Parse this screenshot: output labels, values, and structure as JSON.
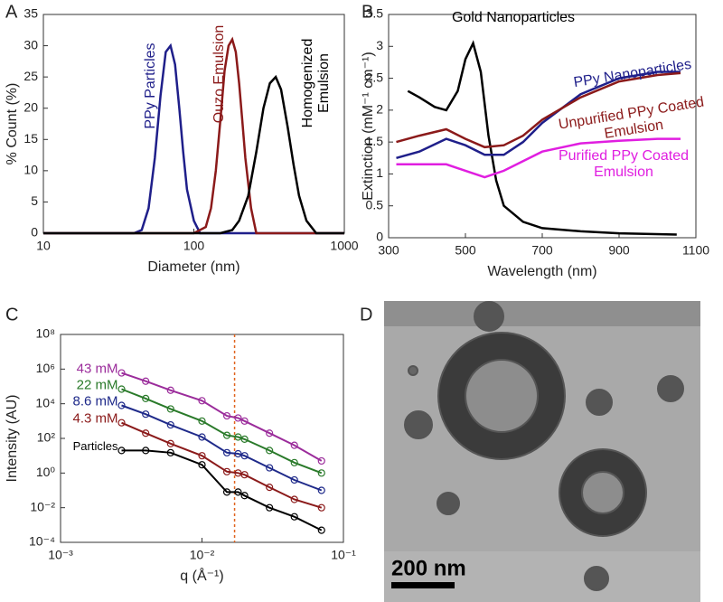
{
  "chart_data": [
    {
      "type": "line",
      "label": "A",
      "xlabel": "Diameter (nm)",
      "ylabel": "% Count (%)",
      "xscale": "log",
      "xlim": [
        10,
        1000
      ],
      "xticks": [
        10,
        100,
        1000
      ],
      "ylim": [
        0,
        35
      ],
      "yticks": [
        0,
        5,
        10,
        15,
        20,
        25,
        30,
        35
      ],
      "series": [
        {
          "name": "PPy Particles",
          "color": "#1f1f8a",
          "x": [
            10,
            40,
            45,
            50,
            55,
            60,
            65,
            70,
            75,
            80,
            85,
            90,
            100,
            110,
            1000
          ],
          "values": [
            0,
            0,
            0.5,
            4,
            12,
            22,
            29,
            30,
            27,
            20,
            13,
            7,
            2,
            0,
            0
          ]
        },
        {
          "name": "Ouzo Emulsion",
          "color": "#8b1a1a",
          "x": [
            10,
            100,
            120,
            130,
            140,
            150,
            160,
            170,
            180,
            190,
            200,
            210,
            220,
            240,
            260,
            1000
          ],
          "values": [
            0,
            0,
            1,
            4,
            10,
            18,
            26,
            30,
            31,
            29,
            24,
            18,
            12,
            4,
            0,
            0
          ]
        },
        {
          "name": "Homogenized Emulsion",
          "color": "#000000",
          "x": [
            10,
            150,
            180,
            200,
            230,
            260,
            290,
            320,
            350,
            380,
            420,
            460,
            500,
            560,
            650,
            1000
          ],
          "values": [
            0,
            0,
            0.5,
            2,
            6,
            13,
            20,
            24,
            25,
            23,
            17,
            11,
            6,
            2,
            0,
            0
          ]
        }
      ]
    },
    {
      "type": "line",
      "label": "B",
      "xlabel": "Wavelength (nm)",
      "ylabel": "Extinction (mM⁻¹ cm⁻¹)",
      "xlim": [
        300,
        1100
      ],
      "xticks": [
        300,
        500,
        700,
        900,
        1100
      ],
      "ylim": [
        0,
        3.5
      ],
      "yticks": [
        0,
        0.5,
        1,
        1.5,
        2,
        2.5,
        3,
        3.5
      ],
      "series": [
        {
          "name": "Gold Nanoparticles",
          "color": "#000000",
          "x": [
            350,
            380,
            420,
            450,
            480,
            500,
            520,
            540,
            560,
            580,
            600,
            650,
            700,
            800,
            900,
            1050
          ],
          "values": [
            2.3,
            2.2,
            2.05,
            2.0,
            2.3,
            2.8,
            3.05,
            2.6,
            1.6,
            0.9,
            0.5,
            0.25,
            0.15,
            0.1,
            0.07,
            0.05
          ]
        },
        {
          "name": "PPy Nanoparticles",
          "color": "#1f1f8a",
          "x": [
            320,
            380,
            450,
            500,
            550,
            600,
            650,
            700,
            800,
            900,
            1000,
            1060
          ],
          "values": [
            1.25,
            1.35,
            1.55,
            1.45,
            1.3,
            1.3,
            1.5,
            1.8,
            2.25,
            2.5,
            2.6,
            2.6
          ]
        },
        {
          "name": "Unpurified PPy Coated Emulsion",
          "color": "#8b1a1a",
          "x": [
            320,
            380,
            450,
            500,
            550,
            600,
            650,
            700,
            800,
            900,
            1000,
            1060
          ],
          "values": [
            1.5,
            1.6,
            1.7,
            1.55,
            1.42,
            1.45,
            1.6,
            1.85,
            2.2,
            2.45,
            2.55,
            2.58
          ]
        },
        {
          "name": "Purified PPy Coated Emulsion",
          "color": "#e01ee0",
          "x": [
            320,
            380,
            450,
            500,
            550,
            600,
            650,
            700,
            800,
            900,
            1000,
            1060
          ],
          "values": [
            1.15,
            1.15,
            1.15,
            1.05,
            0.95,
            1.05,
            1.2,
            1.35,
            1.48,
            1.52,
            1.55,
            1.55
          ]
        }
      ]
    },
    {
      "type": "scatter-line",
      "label": "C",
      "xlabel": "q (Å⁻¹)",
      "ylabel": "Intensity (AU)",
      "xscale": "log",
      "xlim": [
        0.001,
        0.1
      ],
      "xticks": [
        {
          "value": 0.001,
          "label": "10⁻³"
        },
        {
          "value": 0.01,
          "label": "10⁻²"
        },
        {
          "value": 0.1,
          "label": "10⁻¹"
        }
      ],
      "yscale": "log",
      "ylim": [
        0.0001,
        100000000
      ],
      "yticks": [
        {
          "value": 0.0001,
          "label": "10⁻⁴"
        },
        {
          "value": 0.01,
          "label": "10⁻²"
        },
        {
          "value": 1,
          "label": "10⁰"
        },
        {
          "value": 100,
          "label": "10²"
        },
        {
          "value": 10000,
          "label": "10⁴"
        },
        {
          "value": 1000000,
          "label": "10⁶"
        },
        {
          "value": 100000000,
          "label": "10⁸"
        }
      ],
      "vline": 0.017,
      "vline_color": "#e0641e",
      "x": [
        0.0027,
        0.004,
        0.006,
        0.01,
        0.015,
        0.018,
        0.02,
        0.03,
        0.045,
        0.07
      ],
      "series": [
        {
          "name": "43 mM",
          "color": "#9b2c9b",
          "values": [
            600000,
            200000,
            60000,
            15000,
            2000,
            1500,
            1000,
            200,
            40,
            5
          ]
        },
        {
          "name": "22 mM",
          "color": "#2a7a2a",
          "values": [
            70000,
            20000,
            5000,
            1000,
            150,
            120,
            90,
            20,
            4,
            1
          ]
        },
        {
          "name": "8.6 mM",
          "color": "#1f2a8a",
          "values": [
            8000,
            2500,
            600,
            120,
            15,
            13,
            10,
            2,
            0.4,
            0.1
          ]
        },
        {
          "name": "4.3 mM",
          "color": "#8b1a1a",
          "values": [
            800,
            200,
            50,
            10,
            1.2,
            1,
            0.8,
            0.15,
            0.03,
            0.01
          ]
        },
        {
          "name": "Particles",
          "color": "#000000",
          "values": [
            20,
            20,
            15,
            3,
            0.08,
            0.08,
            0.05,
            0.01,
            0.003,
            0.0005
          ]
        }
      ]
    },
    {
      "type": "image",
      "label": "D",
      "scale_bar": "200 nm"
    }
  ]
}
